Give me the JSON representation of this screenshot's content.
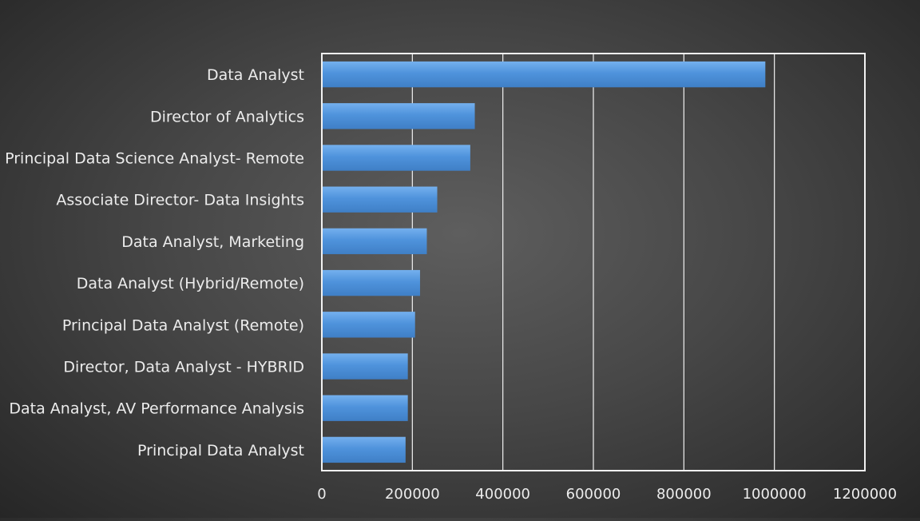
{
  "chart_data": {
    "type": "bar",
    "orientation": "horizontal",
    "categories": [
      "Data Analyst",
      "Director of Analytics",
      "Principal Data Science Analyst- Remote",
      "Associate Director- Data Insights",
      "Data Analyst, Marketing",
      "Data Analyst (Hybrid/Remote)",
      "Principal Data Analyst (Remote)",
      "Director, Data Analyst - HYBRID",
      "Data Analyst, AV Performance Analysis",
      "Principal Data Analyst"
    ],
    "values": [
      980000,
      338000,
      328000,
      255000,
      232000,
      217000,
      206000,
      190000,
      190000,
      185000
    ],
    "xlim": [
      0,
      1200000
    ],
    "xticks": [
      "0",
      "200000",
      "400000",
      "600000",
      "800000",
      "1000000",
      "1200000"
    ],
    "grid": "vertical",
    "legend": "none",
    "title": "",
    "xlabel": "",
    "ylabel": "",
    "colors": {
      "bar": "#4f93dc",
      "bar_highlight": "#6fabea",
      "grid": "#f2f2f2",
      "text": "#ececec"
    }
  }
}
